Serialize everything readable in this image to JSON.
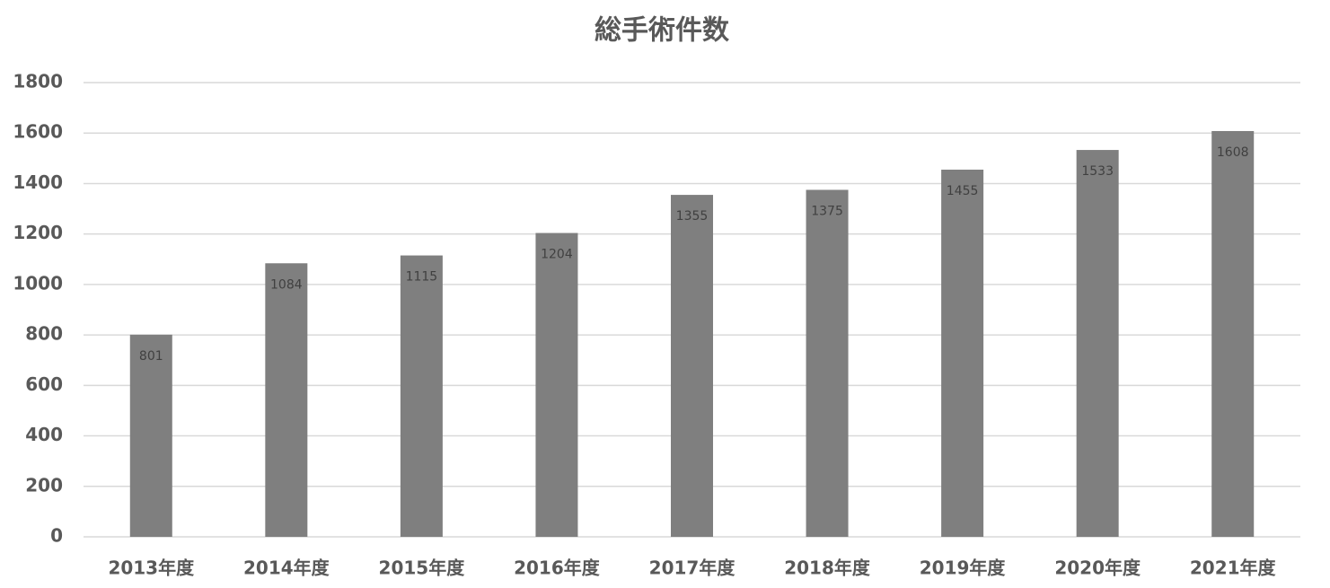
{
  "chart_data": {
    "type": "bar",
    "title": "総手術件数",
    "categories": [
      "2013年度",
      "2014年度",
      "2015年度",
      "2016年度",
      "2017年度",
      "2018年度",
      "2019年度",
      "2020年度",
      "2021年度"
    ],
    "values": [
      801,
      1084,
      1115,
      1204,
      1355,
      1375,
      1455,
      1533,
      1608
    ],
    "color": "#7f7f7f",
    "ylim": [
      0,
      1800
    ],
    "yticks": [
      0,
      200,
      400,
      600,
      800,
      1000,
      1200,
      1400,
      1600,
      1800
    ],
    "grid": true
  }
}
